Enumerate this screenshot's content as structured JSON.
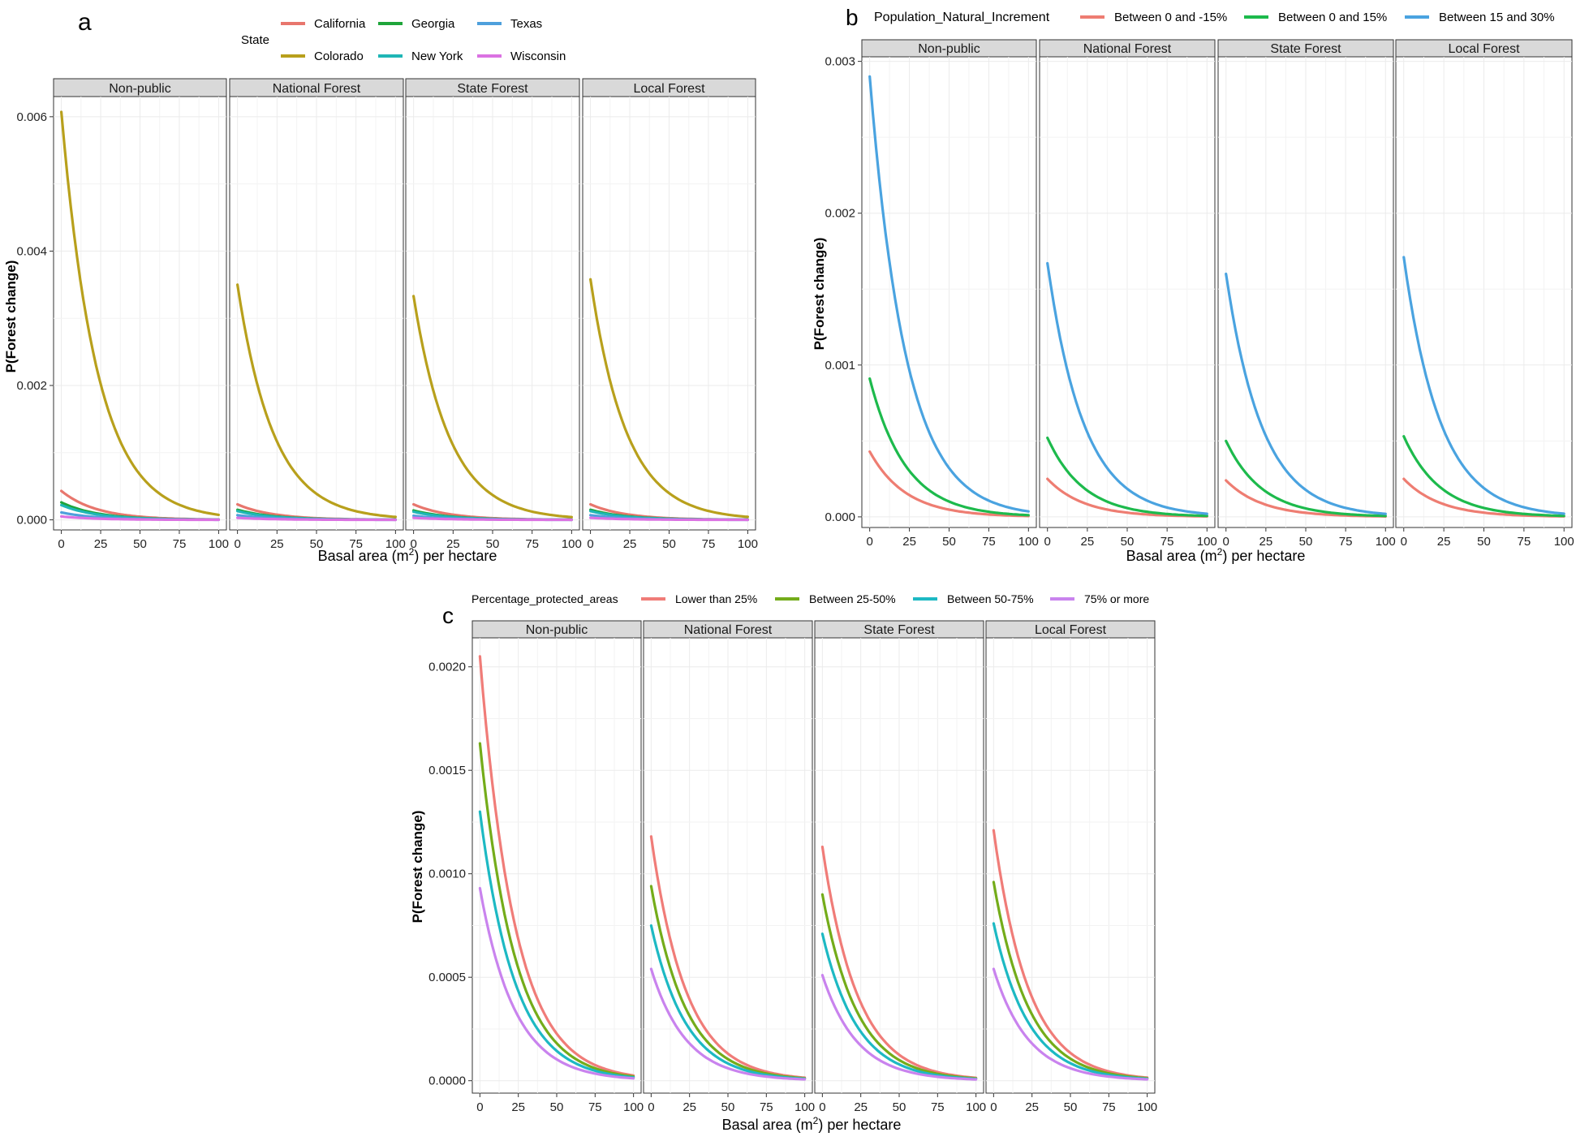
{
  "figure": {
    "facet_labels": [
      "Non-public",
      "National Forest",
      "State Forest",
      "Local Forest"
    ],
    "x_tick_labels": [
      "0",
      "25",
      "50",
      "75",
      "100"
    ]
  },
  "colors": {
    "California": "#E8766D",
    "Colorado": "#B8A01C",
    "Georgia": "#1FA53A",
    "New York": "#1FB6B6",
    "Texas": "#4EA0DC",
    "Wisconsin": "#DB72E2",
    "pni_neg": "#EE7D72",
    "pni_0_15": "#1DBA4C",
    "pni_15_30": "#4AA3E0",
    "pa_lt25": "#F07C78",
    "pa_25_50": "#74AC1A",
    "pa_50_75": "#1DB9C3",
    "pa_75": "#C983EE",
    "strip_fill": "#D9D9D9",
    "grid": "#EBEBEB"
  },
  "chart_data": [
    {
      "panel_letter": "a",
      "type": "line",
      "xlabel": "Basal area (m",
      "xlabel_sup": "2",
      "xlabel_tail": ") per hectare",
      "ylabel": "P(Forest change)",
      "y_ticks": [
        "0.000",
        "0.002",
        "0.004",
        "0.006"
      ],
      "y_tick_values": [
        0,
        0.002,
        0.004,
        0.006
      ],
      "xlim": [
        0,
        100
      ],
      "ylim": [
        -0.00015,
        0.0063
      ],
      "legend_title": "State",
      "legend_position": "top",
      "facets": [
        "Non-public",
        "National Forest",
        "State Forest",
        "Local Forest"
      ],
      "decay_rate": 0.044,
      "series": [
        {
          "name": "California",
          "color_key": "California",
          "start": [
            0.00043,
            0.00023,
            0.00023,
            0.00023
          ]
        },
        {
          "name": "Colorado",
          "color_key": "Colorado",
          "start": [
            0.00607,
            0.0035,
            0.00333,
            0.00358
          ]
        },
        {
          "name": "Georgia",
          "color_key": "Georgia",
          "start": [
            0.00026,
            0.00015,
            0.00014,
            0.00015
          ]
        },
        {
          "name": "New York",
          "color_key": "New York",
          "start": [
            0.00022,
            0.00013,
            0.00012,
            0.00013
          ]
        },
        {
          "name": "Texas",
          "color_key": "Texas",
          "start": [
            0.00011,
            7e-05,
            6e-05,
            7e-05
          ]
        },
        {
          "name": "Wisconsin",
          "color_key": "Wisconsin",
          "start": [
            5e-05,
            3e-05,
            3e-05,
            3e-05
          ]
        }
      ]
    },
    {
      "panel_letter": "b",
      "type": "line",
      "xlabel": "Basal area (m",
      "xlabel_sup": "2",
      "xlabel_tail": ") per hectare",
      "ylabel": "P(Forest change)",
      "y_ticks": [
        "0.000",
        "0.001",
        "0.002",
        "0.003"
      ],
      "y_tick_values": [
        0,
        0.001,
        0.002,
        0.003
      ],
      "xlim": [
        0,
        100
      ],
      "ylim": [
        -7e-05,
        0.00303
      ],
      "legend_title": "Population_Natural_Increment",
      "legend_position": "top",
      "facets": [
        "Non-public",
        "National Forest",
        "State Forest",
        "Local Forest"
      ],
      "decay_rate": 0.044,
      "series": [
        {
          "name": "Between 0 and -15%",
          "color_key": "pni_neg",
          "start": [
            0.00043,
            0.00025,
            0.00024,
            0.00025
          ]
        },
        {
          "name": "Between 0 and 15%",
          "color_key": "pni_0_15",
          "start": [
            0.00091,
            0.00052,
            0.0005,
            0.00053
          ]
        },
        {
          "name": "Between 15 and 30%",
          "color_key": "pni_15_30",
          "start": [
            0.0029,
            0.00167,
            0.0016,
            0.00171
          ]
        }
      ]
    },
    {
      "panel_letter": "c",
      "type": "line",
      "xlabel": "Basal area (m",
      "xlabel_sup": "2",
      "xlabel_tail": ") per hectare",
      "ylabel": "P(Forest change)",
      "y_ticks": [
        "0.0000",
        "0.0005",
        "0.0010",
        "0.0015",
        "0.0020"
      ],
      "y_tick_values": [
        0,
        0.0005,
        0.001,
        0.0015,
        0.002
      ],
      "xlim": [
        0,
        100
      ],
      "ylim": [
        -6e-05,
        0.00214
      ],
      "legend_title": "Percentage_protected_areas",
      "legend_position": "top",
      "facets": [
        "Non-public",
        "National Forest",
        "State Forest",
        "Local Forest"
      ],
      "decay_rate": 0.044,
      "series": [
        {
          "name": "Lower than 25%",
          "color_key": "pa_lt25",
          "start": [
            0.00205,
            0.00118,
            0.00113,
            0.00121
          ]
        },
        {
          "name": "Between 25-50%",
          "color_key": "pa_25_50",
          "start": [
            0.00163,
            0.00094,
            0.0009,
            0.00096
          ]
        },
        {
          "name": "Between 50-75%",
          "color_key": "pa_50_75",
          "start": [
            0.0013,
            0.00075,
            0.00071,
            0.00076
          ]
        },
        {
          "name": "75% or more",
          "color_key": "pa_75",
          "start": [
            0.00093,
            0.00054,
            0.00051,
            0.00054
          ]
        }
      ]
    }
  ]
}
